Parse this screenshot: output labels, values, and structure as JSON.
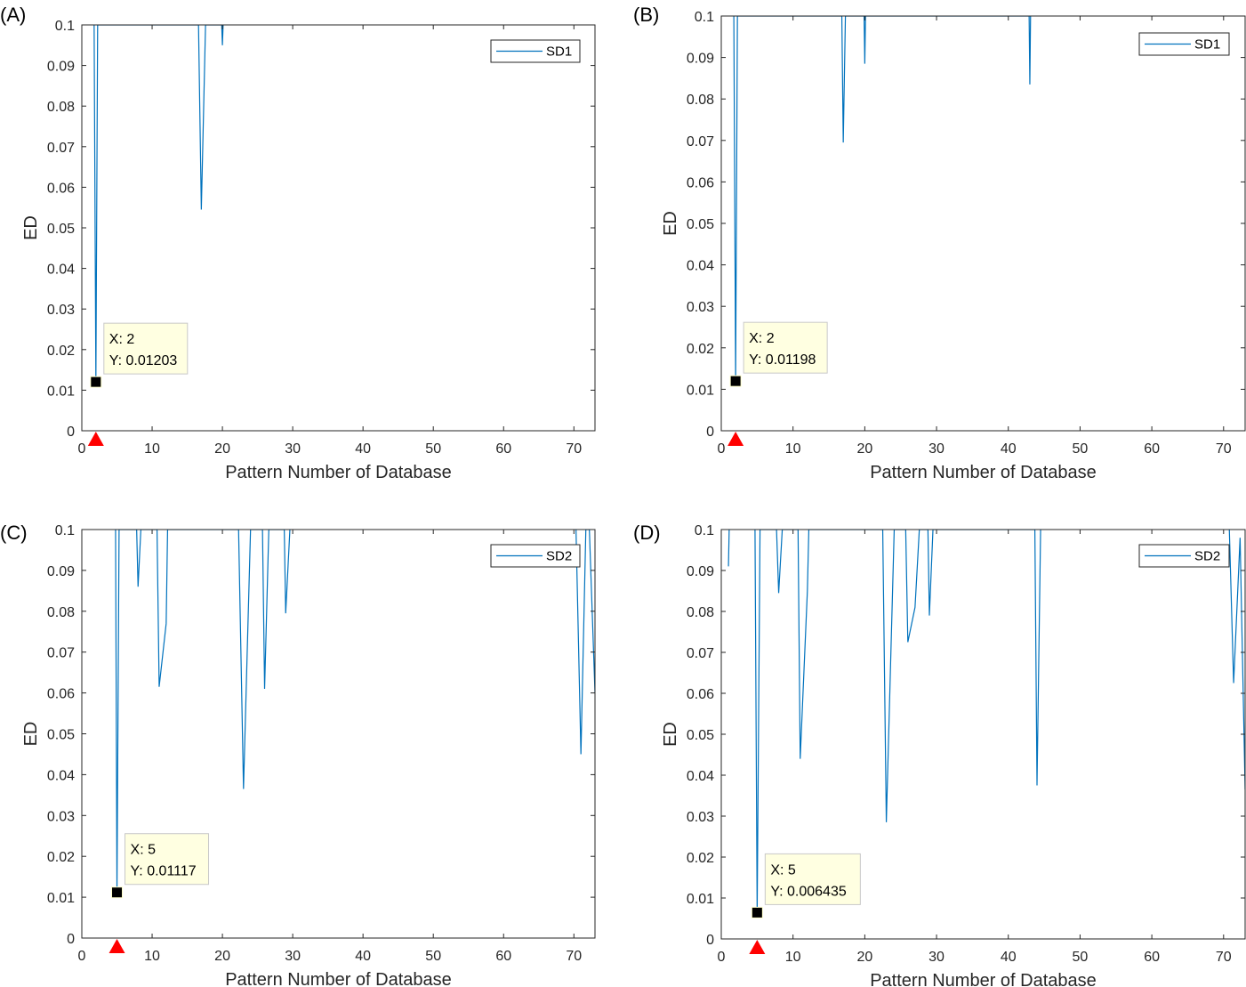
{
  "chart_data": [
    {
      "type": "line",
      "panel_label": "(A)",
      "xlabel": "Pattern Number of Database",
      "ylabel": "ED",
      "xlim": [
        0,
        73
      ],
      "ylim": [
        0,
        0.1
      ],
      "xticks": [
        "0",
        "10",
        "20",
        "30",
        "40",
        "50",
        "60",
        "70"
      ],
      "yticks": [
        "0",
        "0.01",
        "0.02",
        "0.03",
        "0.04",
        "0.05",
        "0.06",
        "0.07",
        "0.08",
        "0.09",
        "0.1"
      ],
      "legend": {
        "position": "top-right"
      },
      "series": [
        {
          "name": "SD1",
          "color": "#0072BD",
          "x": [
            1.75,
            2,
            2.25,
            16.6,
            17,
            17.6,
            19.9,
            20,
            20.1
          ],
          "y": [
            0.1,
            0.01203,
            0.1,
            0.1,
            0.0545,
            0.1,
            0.1,
            0.095,
            0.1
          ]
        }
      ],
      "datatip": {
        "x": 2,
        "y": 0.01203,
        "line1": "X: 2",
        "line2": "Y: 0.01203"
      },
      "marker": {
        "x": 2
      }
    },
    {
      "type": "line",
      "panel_label": "(B)",
      "xlabel": "Pattern Number of Database",
      "ylabel": "ED",
      "xlim": [
        0,
        73
      ],
      "ylim": [
        0,
        0.1
      ],
      "xticks": [
        "0",
        "10",
        "20",
        "30",
        "40",
        "50",
        "60",
        "70"
      ],
      "yticks": [
        "0",
        "0.01",
        "0.02",
        "0.03",
        "0.04",
        "0.05",
        "0.06",
        "0.07",
        "0.08",
        "0.09",
        "0.1"
      ],
      "legend": {
        "position": "top-right"
      },
      "series": [
        {
          "name": "SD1",
          "color": "#0072BD",
          "x": [
            1.75,
            2,
            2.25,
            16.8,
            17,
            17.3,
            19.9,
            20,
            20.1,
            42.9,
            43,
            43.1
          ],
          "y": [
            0.1,
            0.01198,
            0.1,
            0.1,
            0.0695,
            0.1,
            0.1,
            0.0885,
            0.1,
            0.1,
            0.0835,
            0.1
          ]
        }
      ],
      "datatip": {
        "x": 2,
        "y": 0.01198,
        "line1": "X: 2",
        "line2": "Y: 0.01198"
      },
      "marker": {
        "x": 2
      }
    },
    {
      "type": "line",
      "panel_label": "(C)",
      "xlabel": "Pattern Number of Database",
      "ylabel": "ED",
      "xlim": [
        0,
        73
      ],
      "ylim": [
        0,
        0.1
      ],
      "xticks": [
        "0",
        "10",
        "20",
        "30",
        "40",
        "50",
        "60",
        "70"
      ],
      "yticks": [
        "0",
        "0.01",
        "0.02",
        "0.03",
        "0.04",
        "0.05",
        "0.06",
        "0.07",
        "0.08",
        "0.09",
        "0.1"
      ],
      "legend": {
        "position": "top-right"
      },
      "series": [
        {
          "name": "SD2",
          "color": "#0072BD",
          "x": [
            4.8,
            5,
            5.3,
            7.8,
            8,
            8.4,
            10.7,
            11,
            12,
            12.2,
            22.3,
            23,
            24,
            25.7,
            26,
            26.6,
            28.8,
            29,
            29.6
          ],
          "y": [
            0.1,
            0.01117,
            0.1,
            0.1,
            0.086,
            0.1,
            0.1,
            0.0615,
            0.077,
            0.1,
            0.1,
            0.0365,
            0.1,
            0.1,
            0.061,
            0.1,
            0.1,
            0.0795,
            0.1
          ]
        },
        {
          "name": "",
          "color": "#0072BD",
          "x": [
            70.3,
            71,
            71.7,
            72.2,
            73
          ],
          "y": [
            0.1,
            0.045,
            0.1,
            0.1,
            0.06
          ]
        }
      ],
      "datatip": {
        "x": 5,
        "y": 0.01117,
        "line1": "X: 5",
        "line2": "Y: 0.01117"
      },
      "marker": {
        "x": 5
      }
    },
    {
      "type": "line",
      "panel_label": "(D)",
      "xlabel": "Pattern Number of Database",
      "ylabel": "ED",
      "xlim": [
        0,
        73
      ],
      "ylim": [
        0,
        0.1
      ],
      "xticks": [
        "0",
        "10",
        "20",
        "30",
        "40",
        "50",
        "60",
        "70"
      ],
      "yticks": [
        "0",
        "0.01",
        "0.02",
        "0.03",
        "0.04",
        "0.05",
        "0.06",
        "0.07",
        "0.08",
        "0.09",
        "0.1"
      ],
      "legend": {
        "position": "top-right"
      },
      "series": [
        {
          "name": "SD2",
          "color": "#0072BD",
          "x": [
            1,
            1.1
          ],
          "y": [
            0.091,
            0.1
          ]
        },
        {
          "name": "",
          "color": "#0072BD",
          "x": [
            4.7,
            5,
            5.4,
            7.7,
            8,
            8.5,
            10.7,
            11,
            12,
            12.2,
            22.5,
            23,
            24.1,
            25.7,
            26,
            27,
            27.6,
            28.8,
            29,
            29.5,
            43.7,
            44,
            44.5
          ],
          "y": [
            0.1,
            0.006435,
            0.1,
            0.1,
            0.0845,
            0.1,
            0.1,
            0.044,
            0.085,
            0.1,
            0.1,
            0.0285,
            0.1,
            0.1,
            0.0725,
            0.081,
            0.1,
            0.1,
            0.079,
            0.1,
            0.1,
            0.0375,
            0.1
          ]
        },
        {
          "name": "",
          "color": "#0072BD",
          "x": [
            70.8,
            71.4,
            72.3,
            73
          ],
          "y": [
            0.1,
            0.0625,
            0.098,
            0.0365
          ]
        }
      ],
      "datatip": {
        "x": 5,
        "y": 0.006435,
        "line1": "X: 5",
        "line2": "Y: 0.006435"
      },
      "marker": {
        "x": 5
      }
    }
  ]
}
